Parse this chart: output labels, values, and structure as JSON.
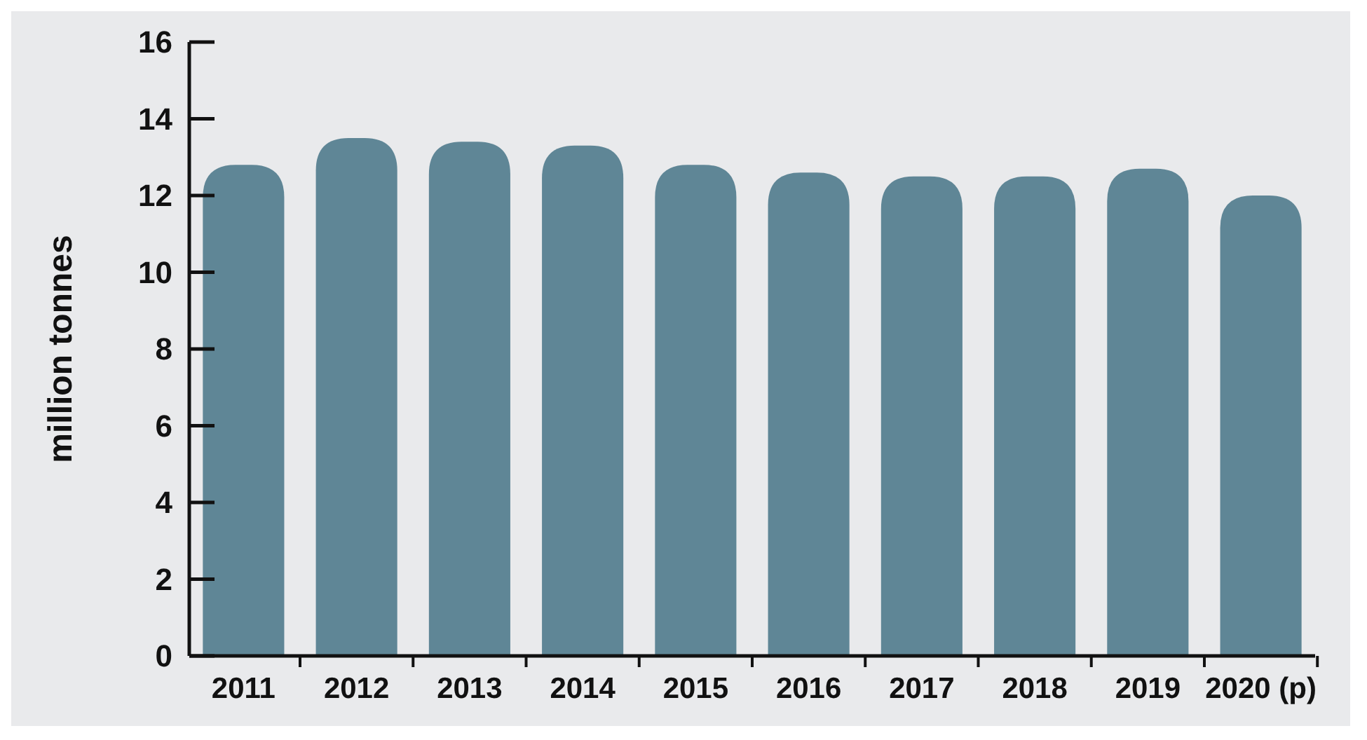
{
  "chart_data": {
    "type": "bar",
    "ylabel": "million tonnes",
    "categories": [
      "2011",
      "2012",
      "2013",
      "2014",
      "2015",
      "2016",
      "2017",
      "2018",
      "2019",
      "2020 (p)"
    ],
    "values": [
      12.8,
      13.5,
      13.4,
      13.3,
      12.8,
      12.6,
      12.5,
      12.5,
      12.7,
      12.0
    ],
    "color": "#5f8696",
    "ylim": [
      0,
      16
    ],
    "yticks": [
      0,
      2,
      4,
      6,
      8,
      10,
      12,
      14,
      16
    ],
    "grid": false
  }
}
